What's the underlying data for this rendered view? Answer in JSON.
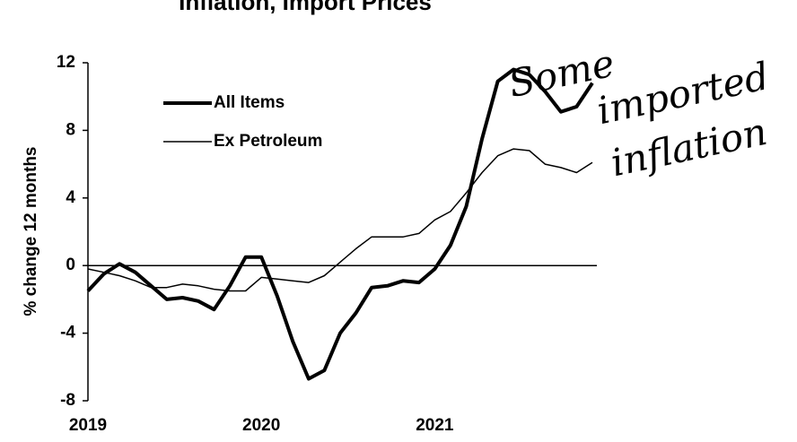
{
  "chart_data": {
    "type": "line",
    "title": "Inflation, Import Prices",
    "y_label": "% change 12 months",
    "annotation": [
      "Some",
      "imported",
      "inflation"
    ],
    "categories": [
      "2019",
      null,
      null,
      null,
      null,
      null,
      null,
      null,
      null,
      null,
      null,
      "2020",
      null,
      null,
      null,
      null,
      null,
      null,
      null,
      null,
      null,
      null,
      "2021",
      null,
      null,
      null,
      null,
      null,
      null,
      null,
      null,
      null,
      null
    ],
    "series": [
      {
        "name": "All Items",
        "color": "#000000",
        "width": 4,
        "values": [
          -1.5,
          -0.5,
          0.1,
          -0.4,
          -1.2,
          -2.0,
          -1.9,
          -2.1,
          -2.6,
          -1.2,
          0.5,
          0.5,
          -1.8,
          -4.5,
          -6.7,
          -6.2,
          -4.0,
          -2.8,
          -1.3,
          -1.2,
          -0.9,
          -1.0,
          -0.2,
          1.2,
          3.5,
          7.5,
          10.9,
          11.6,
          11.3,
          10.3,
          9.1,
          9.4,
          10.8
        ]
      },
      {
        "name": "Ex Petroleum",
        "color": "#000000",
        "width": 1.5,
        "values": [
          -0.2,
          -0.4,
          -0.6,
          -0.9,
          -1.3,
          -1.3,
          -1.1,
          -1.2,
          -1.4,
          -1.5,
          -1.5,
          -0.7,
          -0.8,
          -0.9,
          -1.0,
          -0.6,
          0.2,
          1.0,
          1.7,
          1.7,
          1.7,
          1.9,
          2.7,
          3.2,
          4.3,
          5.5,
          6.5,
          6.9,
          6.8,
          6.0,
          5.8,
          5.5,
          6.1
        ]
      }
    ],
    "ylim": [
      -8,
      12
    ],
    "yticks": [
      -8,
      -4,
      0,
      4,
      8,
      12
    ],
    "grid": false,
    "legend": "upper left"
  }
}
